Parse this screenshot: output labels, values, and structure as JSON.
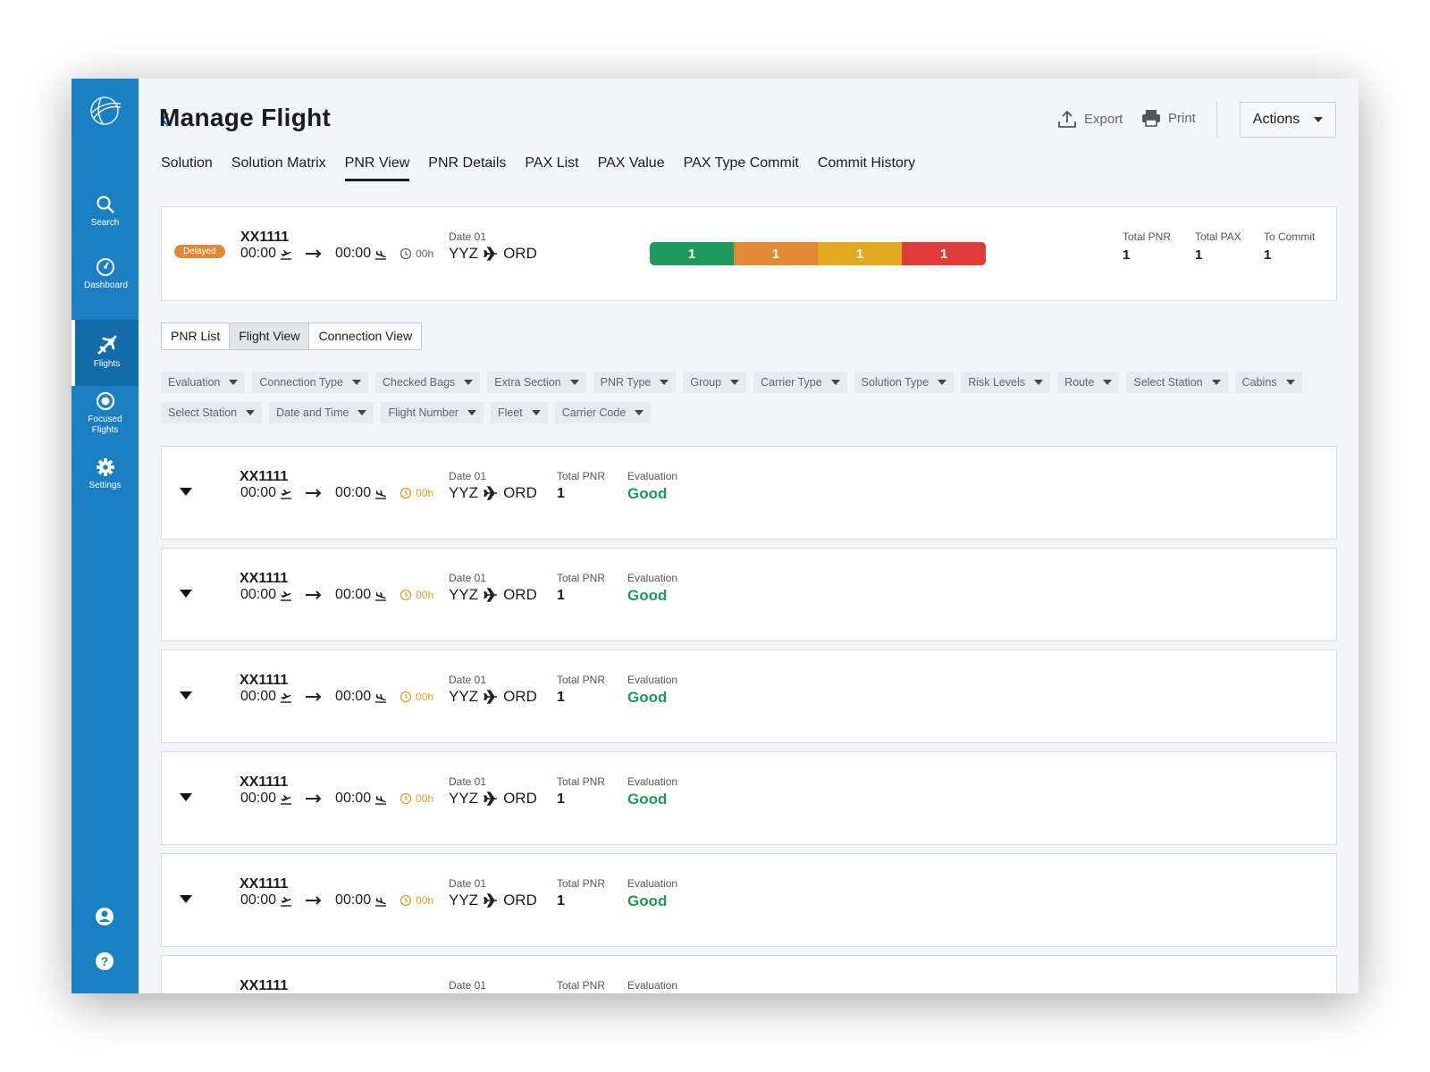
{
  "sidebar": {
    "items": [
      {
        "label": "Search",
        "icon": "search"
      },
      {
        "label": "Dashboard",
        "icon": "dashboard"
      },
      {
        "label": "Flights",
        "icon": "flights",
        "active": true
      },
      {
        "label": "Focused Flights",
        "icon": "focused"
      },
      {
        "label": "Settings",
        "icon": "settings"
      }
    ]
  },
  "header": {
    "title": "Manage Flight",
    "export": "Export",
    "print": "Print",
    "actions": "Actions"
  },
  "tabs": [
    {
      "label": "Solution"
    },
    {
      "label": "Solution Matrix"
    },
    {
      "label": "PNR View",
      "active": true
    },
    {
      "label": "PNR Details"
    },
    {
      "label": "PAX List"
    },
    {
      "label": "PAX Value"
    },
    {
      "label": "PAX Type Commit"
    },
    {
      "label": "Commit History"
    }
  ],
  "summary": {
    "status": "Delayed",
    "flight": "XX1111",
    "departure": "00:00",
    "arrival": "00:00",
    "duration": "00h",
    "date_label": "Date 01",
    "origin": "YYZ",
    "destination": "ORD",
    "segments": [
      {
        "value": 1,
        "color": "#1f9a5b"
      },
      {
        "value": 1,
        "color": "#e08a35"
      },
      {
        "value": 1,
        "color": "#e2a81e"
      },
      {
        "value": 1,
        "color": "#e03b3b"
      }
    ],
    "stats": [
      {
        "label": "Total PNR",
        "value": 1
      },
      {
        "label": "Total PAX",
        "value": 1
      },
      {
        "label": "To Commit",
        "value": 1
      }
    ]
  },
  "view_toggle": [
    {
      "label": "PNR List"
    },
    {
      "label": "Flight View",
      "active": true
    },
    {
      "label": "Connection View"
    }
  ],
  "filters": [
    "Evaluation",
    "Connection Type",
    "Checked Bags",
    "Extra Section",
    "PNR Type",
    "Group",
    "Carrier Type",
    "Solution Type",
    "Risk Levels",
    "Route",
    "Select Station",
    "Cabins",
    "Select Station",
    "Date and Time",
    "Flight Number",
    "Fleet",
    "Carrier Code"
  ],
  "flights": [
    {
      "flight": "XX1111",
      "departure": "00:00",
      "arrival": "00:00",
      "duration": "00h",
      "date_label": "Date 01",
      "origin": "YYZ",
      "destination": "ORD",
      "total_pnr_label": "Total PNR",
      "total_pnr": 1,
      "evaluation_label": "Evaluation",
      "evaluation": "Good"
    },
    {
      "flight": "XX1111",
      "departure": "00:00",
      "arrival": "00:00",
      "duration": "00h",
      "date_label": "Date 01",
      "origin": "YYZ",
      "destination": "ORD",
      "total_pnr_label": "Total PNR",
      "total_pnr": 1,
      "evaluation_label": "Evaluation",
      "evaluation": "Good"
    },
    {
      "flight": "XX1111",
      "departure": "00:00",
      "arrival": "00:00",
      "duration": "00h",
      "date_label": "Date 01",
      "origin": "YYZ",
      "destination": "ORD",
      "total_pnr_label": "Total PNR",
      "total_pnr": 1,
      "evaluation_label": "Evaluation",
      "evaluation": "Good"
    },
    {
      "flight": "XX1111",
      "departure": "00:00",
      "arrival": "00:00",
      "duration": "00h",
      "date_label": "Date 01",
      "origin": "YYZ",
      "destination": "ORD",
      "total_pnr_label": "Total PNR",
      "total_pnr": 1,
      "evaluation_label": "Evaluation",
      "evaluation": "Good"
    },
    {
      "flight": "XX1111",
      "departure": "00:00",
      "arrival": "00:00",
      "duration": "00h",
      "date_label": "Date 01",
      "origin": "YYZ",
      "destination": "ORD",
      "total_pnr_label": "Total PNR",
      "total_pnr": 1,
      "evaluation_label": "Evaluation",
      "evaluation": "Good"
    },
    {
      "flight": "XX1111",
      "date_label": "Date 01",
      "total_pnr_label": "Total PNR",
      "evaluation_label": "Evaluation"
    }
  ]
}
